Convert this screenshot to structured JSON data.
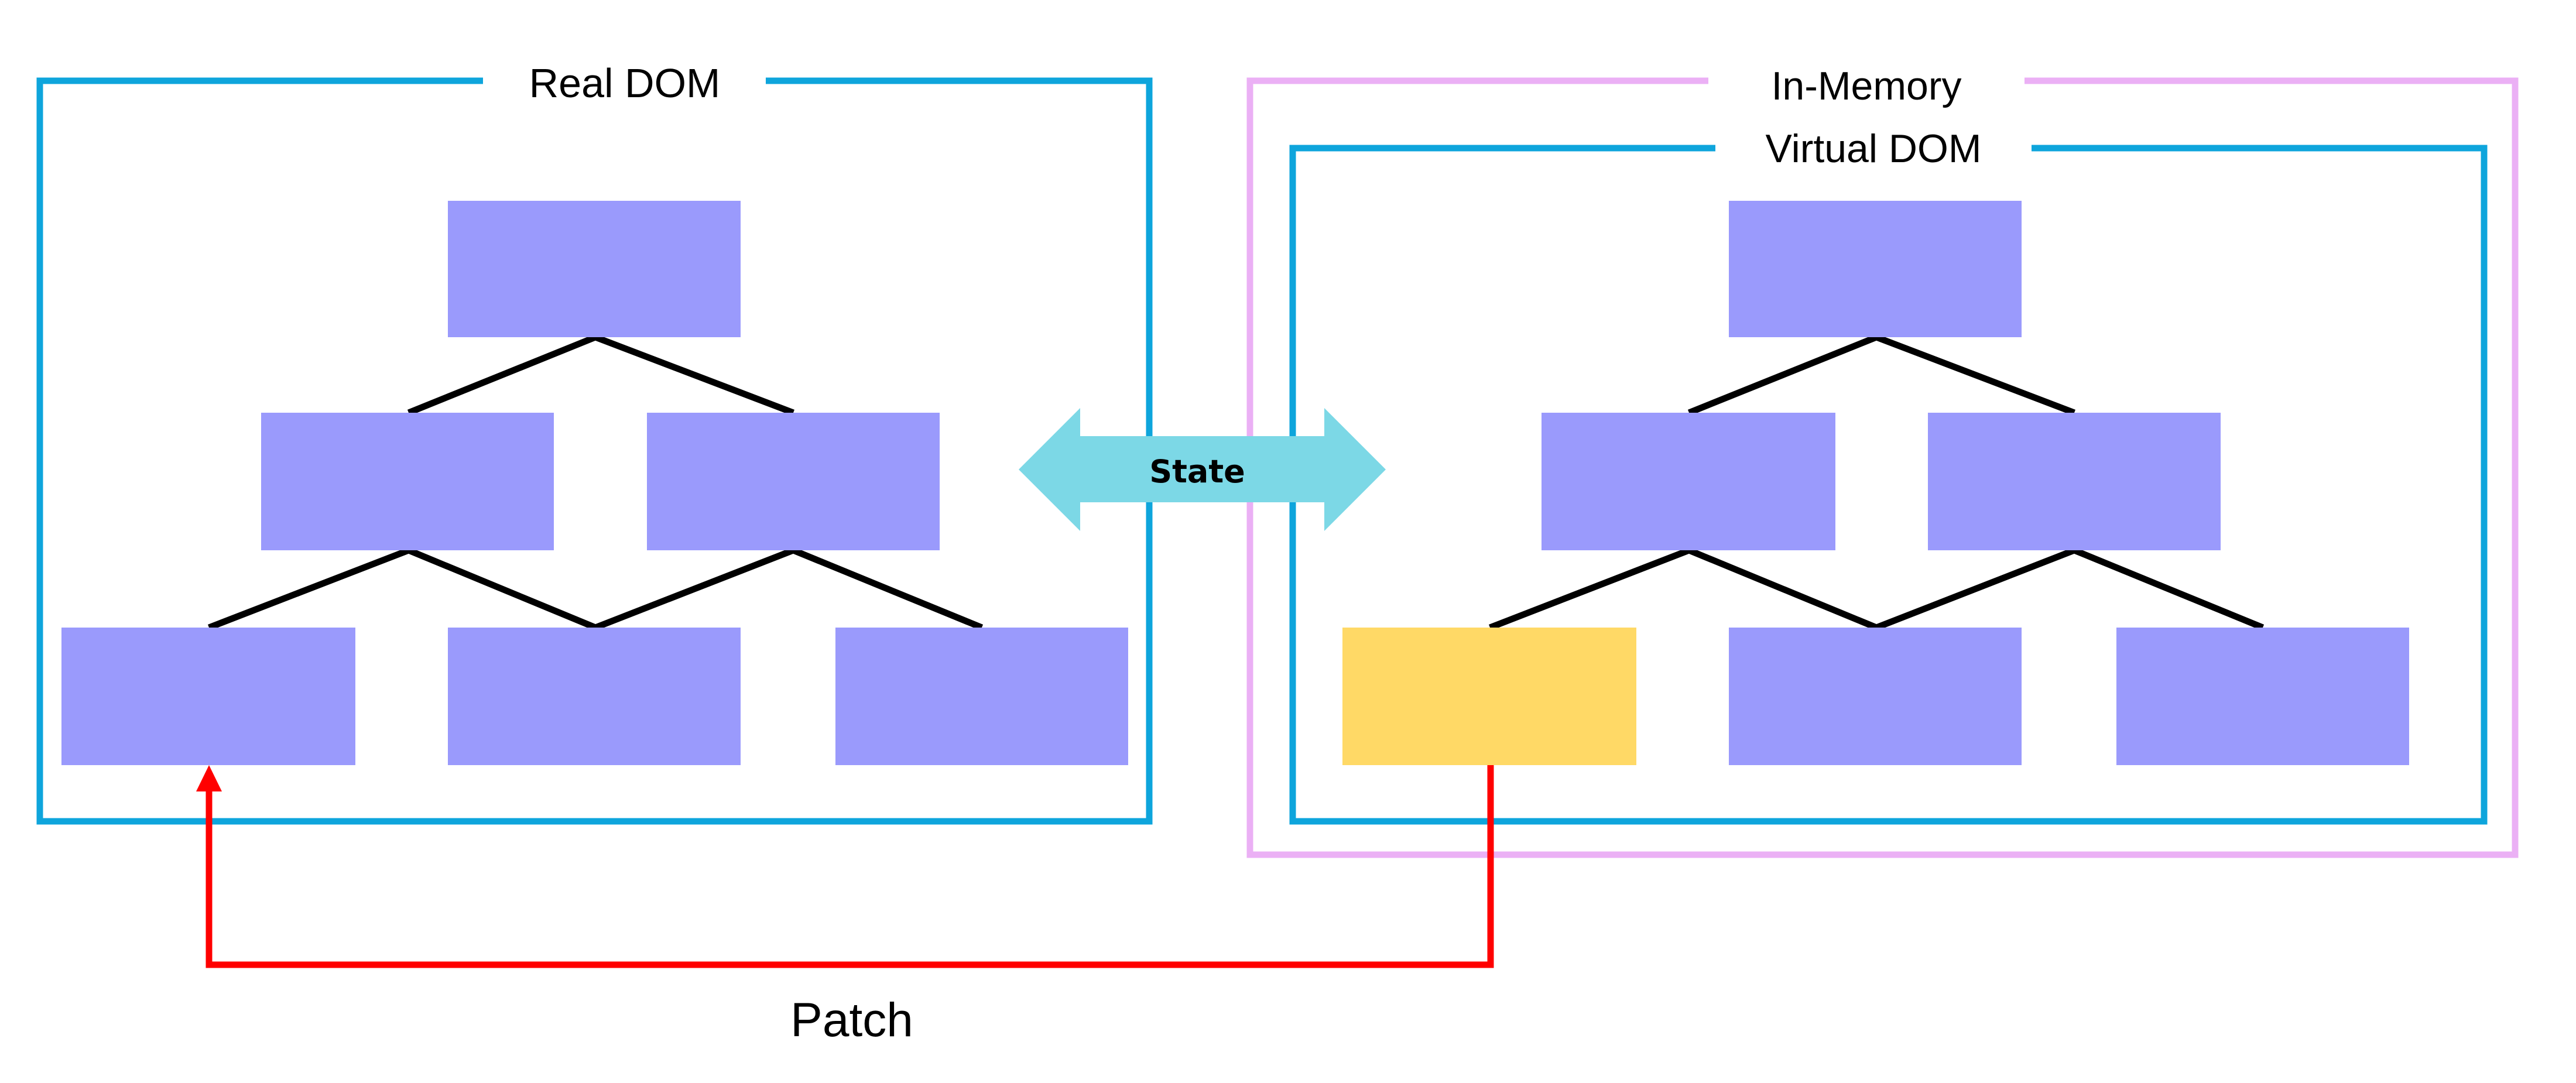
{
  "real_dom": {
    "label": "Real DOM",
    "frame_color": "#0ea5dc"
  },
  "in_memory": {
    "label": "In-Memory",
    "frame_color": "#ebb0f5"
  },
  "virtual_dom": {
    "label": "Virtual DOM",
    "frame_color": "#0ea5dc"
  },
  "state_arrow": {
    "label": "State",
    "color": "#7cd8e6"
  },
  "patch_arrow": {
    "label": "Patch",
    "color": "#ff0000"
  },
  "colors": {
    "node": "#9a9afc",
    "changed_node": "#ffd966",
    "edge": "#000000"
  }
}
